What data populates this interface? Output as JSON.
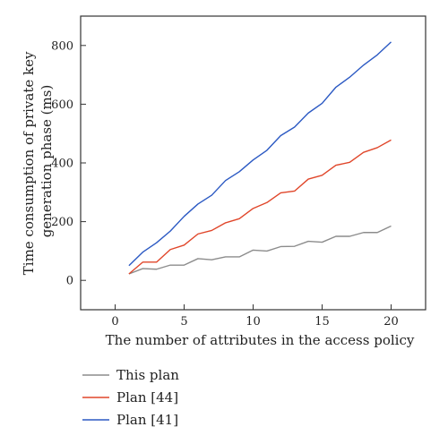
{
  "chart_data": {
    "type": "line",
    "xlabel": "The number of attributes in the access policy",
    "ylabel": [
      "Time consumption of private key",
      "generation phase (ms)"
    ],
    "xlim": [
      -2.5,
      22.5
    ],
    "ylim": [
      -100,
      900
    ],
    "xticks": [
      0,
      5,
      10,
      15,
      20
    ],
    "yticks": [
      0,
      200,
      400,
      600,
      800
    ],
    "grid": false,
    "legend_position": "below-left",
    "x": [
      1,
      2,
      3,
      4,
      5,
      6,
      7,
      8,
      9,
      10,
      11,
      12,
      13,
      14,
      15,
      16,
      17,
      18,
      19,
      20
    ],
    "series": [
      {
        "name": "This plan",
        "color": "#8c8c8c",
        "values": [
          22,
          40,
          38,
          52,
          52,
          74,
          70,
          80,
          80,
          103,
          100,
          115,
          116,
          133,
          130,
          150,
          150,
          163,
          163,
          185
        ]
      },
      {
        "name": "Plan [44]",
        "color": "#e0462a",
        "values": [
          22,
          62,
          62,
          105,
          120,
          158,
          170,
          196,
          210,
          245,
          265,
          298,
          304,
          345,
          358,
          392,
          402,
          436,
          452,
          478
        ]
      },
      {
        "name": "Plan [41]",
        "color": "#2b59c3",
        "values": [
          50,
          96,
          128,
          168,
          218,
          260,
          290,
          340,
          370,
          410,
          443,
          493,
          522,
          570,
          603,
          658,
          692,
          733,
          768,
          812
        ]
      }
    ]
  }
}
